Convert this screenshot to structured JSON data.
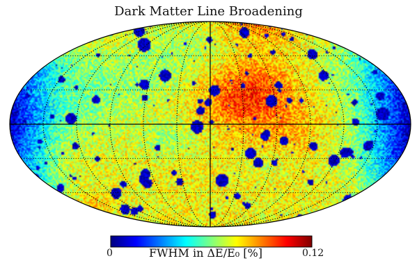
{
  "chart_data": {
    "type": "heatmap",
    "projection": "mollweide",
    "title": "Dark Matter Line Broadening",
    "graticule": {
      "longitude_lines": 12,
      "latitude_lines": 6,
      "style": "dotted",
      "central_axes": "solid"
    },
    "colorbar": {
      "min_label": "0",
      "max_label": "0.12",
      "label": "FWHM in ΔE/E₀ [%]",
      "vmin": 0,
      "vmax": 0.12,
      "colormap": "jet",
      "colors": [
        "#00007f",
        "#0000ff",
        "#007fff",
        "#00ffff",
        "#7fff7f",
        "#ffff00",
        "#ff7f00",
        "#ff0000",
        "#7f0000"
      ]
    },
    "field_description": {
      "background_value": 0.075,
      "high_regions_value": 0.095,
      "limb_values": 0.035,
      "hole_value": 0.0
    }
  }
}
